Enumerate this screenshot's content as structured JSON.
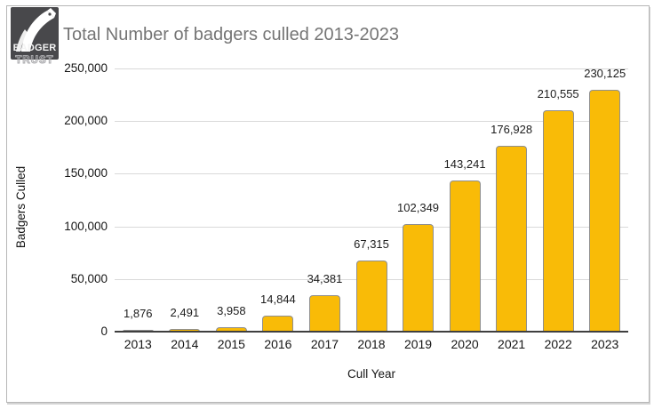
{
  "logo": {
    "line1": "BADGER",
    "line2": "TRUST"
  },
  "chart_data": {
    "type": "bar",
    "title": "Total Number of badgers culled 2013-2023",
    "xlabel": "Cull Year",
    "ylabel": "Badgers Culled",
    "categories": [
      "2013",
      "2014",
      "2015",
      "2016",
      "2017",
      "2018",
      "2019",
      "2020",
      "2021",
      "2022",
      "2023"
    ],
    "values": [
      1876,
      2491,
      3958,
      14844,
      34381,
      67315,
      102349,
      143241,
      176928,
      210555,
      230125
    ],
    "value_labels": [
      "1,876",
      "2,491",
      "3,958",
      "14,844",
      "34,381",
      "67,315",
      "102,349",
      "143,241",
      "176,928",
      "210,555",
      "230,125"
    ],
    "ylim": [
      0,
      250000
    ],
    "yticks": [
      0,
      50000,
      100000,
      150000,
      200000,
      250000
    ],
    "ytick_labels": [
      "0",
      "50,000",
      "100,000",
      "150,000",
      "200,000",
      "250,000"
    ],
    "grid": true,
    "legend": "none",
    "bar_color": "#F9BB07",
    "bar_border_color": "#8F8F8F",
    "grid_color": "#D9D9D9",
    "baseline_color": "#3F3F3F",
    "title_color": "#757575",
    "axis_text_color": "#161616"
  }
}
